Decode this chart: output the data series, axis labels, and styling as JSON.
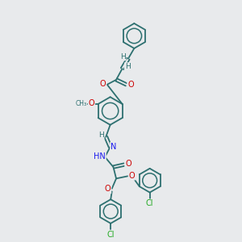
{
  "background_color": "#e8eaec",
  "figsize": [
    3.0,
    3.0
  ],
  "dpi": 100,
  "O_color": "#cc0000",
  "N_color": "#1a1aee",
  "Cl_color": "#22aa22",
  "C_color": "#2d7070",
  "bond_color": "#2d7070",
  "bond_lw": 1.3,
  "font_size": 7.0,
  "xlim": [
    0,
    10
  ],
  "ylim": [
    0,
    10
  ]
}
